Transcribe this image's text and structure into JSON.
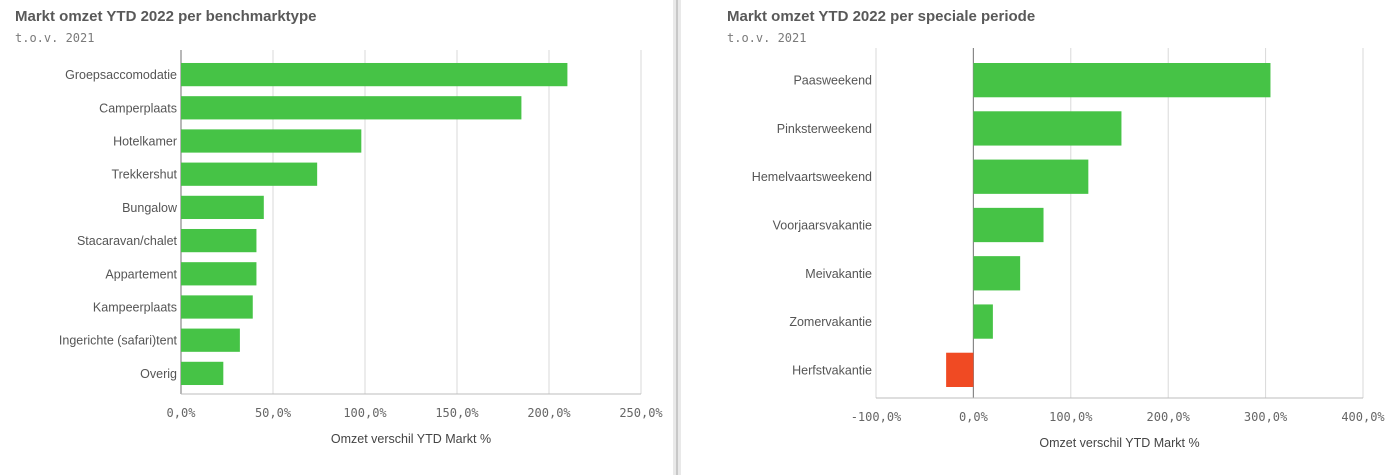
{
  "charts": [
    {
      "title": "Markt omzet YTD 2022 per benchmarktype",
      "subtitle": "t.o.v. 2021",
      "chart_data": {
        "type": "bar",
        "orientation": "horizontal",
        "categories": [
          "Groepsaccomodatie",
          "Camperplaats",
          "Hotelkamer",
          "Trekkershut",
          "Bungalow",
          "Stacaravan/chalet",
          "Appartement",
          "Kampeerplaats",
          "Ingerichte (safari)tent",
          "Overig"
        ],
        "values": [
          210,
          185,
          98,
          74,
          45,
          41,
          41,
          39,
          32,
          23
        ],
        "xlabel": "Omzet verschil YTD Markt %",
        "xticks": [
          0,
          50,
          100,
          150,
          200,
          250
        ],
        "xtick_labels": [
          "0,0%",
          "50,0%",
          "100,0%",
          "150,0%",
          "200,0%",
          "250,0%"
        ],
        "xlim": [
          0,
          250
        ],
        "grid": true,
        "colors": {
          "positive": "#46c346",
          "negative": "#f04a23"
        }
      }
    },
    {
      "title": "Markt omzet YTD 2022 per speciale periode",
      "subtitle": "t.o.v. 2021",
      "chart_data": {
        "type": "bar",
        "orientation": "horizontal",
        "categories": [
          "Paasweekend",
          "Pinksterweekend",
          "Hemelvaartsweekend",
          "Voorjaarsvakantie",
          "Meivakantie",
          "Zomervakantie",
          "Herfstvakantie"
        ],
        "values": [
          305,
          152,
          118,
          72,
          48,
          20,
          -28
        ],
        "xlabel": "Omzet verschil YTD Markt %",
        "xticks": [
          -100,
          0,
          100,
          200,
          300,
          400
        ],
        "xtick_labels": [
          "-100,0%",
          "0,0%",
          "100,0%",
          "200,0%",
          "300,0%",
          "400,0%"
        ],
        "xlim": [
          -100,
          400
        ],
        "grid": true,
        "colors": {
          "positive": "#46c346",
          "negative": "#f04a23"
        }
      }
    }
  ]
}
